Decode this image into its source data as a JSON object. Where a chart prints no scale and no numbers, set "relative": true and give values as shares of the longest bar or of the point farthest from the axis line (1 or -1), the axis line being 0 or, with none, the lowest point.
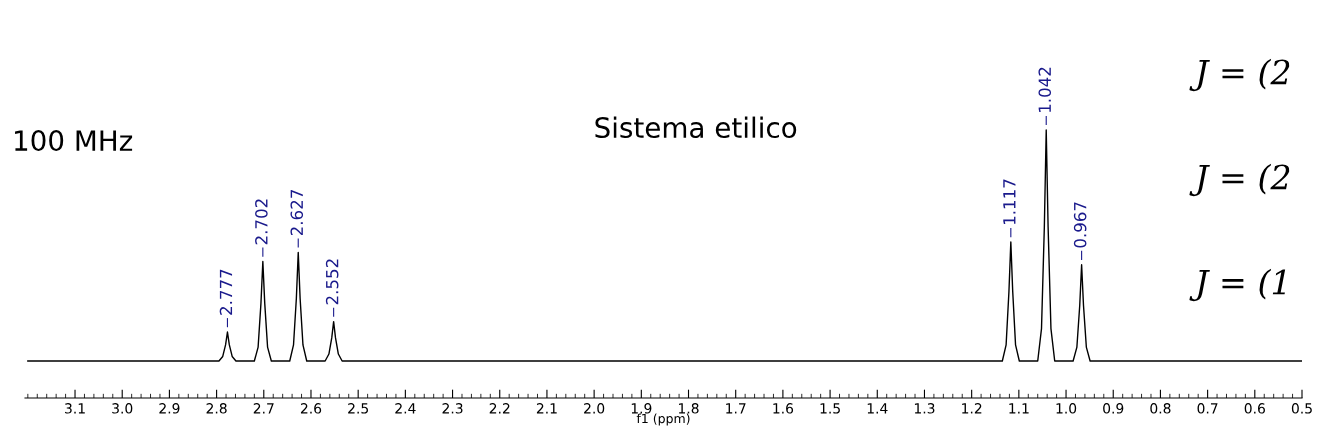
{
  "chart_data": {
    "type": "line",
    "title": "Sistema etilico",
    "xlabel": "f1 (ppm)",
    "relative": true,
    "xlim": [
      3.206,
      0.5
    ],
    "xticks": [
      3.1,
      {
        "value": 3,
        "label": "3.0"
      },
      2.9,
      2.8,
      2.7,
      2.6,
      2.5,
      2.4,
      2.3,
      2.2,
      2.1,
      {
        "value": 2,
        "label": "2.0"
      },
      1.9,
      1.8,
      1.7,
      1.6,
      1.5,
      1.4,
      1.3,
      1.2,
      1.1,
      {
        "value": 1,
        "label": "1.0"
      },
      0.9,
      0.8,
      0.7,
      0.6,
      0.5
    ],
    "tick_labels": "x",
    "grid": false,
    "legend": false,
    "marker": "none",
    "line_style": "solid",
    "series": [
      {
        "color": "#000000",
        "x": [
          3.2,
          2.795,
          2.787,
          2.781,
          2.777,
          2.773,
          2.767,
          2.759,
          2.72,
          2.712,
          2.706,
          2.702,
          2.698,
          2.692,
          2.684,
          2.645,
          2.637,
          2.631,
          2.627,
          2.623,
          2.617,
          2.609,
          2.57,
          2.562,
          2.556,
          2.552,
          2.548,
          2.542,
          2.534,
          1.135,
          1.127,
          1.121,
          1.117,
          1.113,
          1.107,
          1.099,
          1.06,
          1.052,
          1.046,
          1.042,
          1.038,
          1.032,
          1.024,
          0.985,
          0.977,
          0.971,
          0.967,
          0.963,
          0.957,
          0.949,
          0.5
        ],
        "values": [
          0.138,
          0.138,
          0.155,
          0.198,
          0.246,
          0.198,
          0.155,
          0.138,
          0.138,
          0.19,
          0.354,
          0.509,
          0.354,
          0.19,
          0.138,
          0.138,
          0.198,
          0.371,
          0.543,
          0.371,
          0.198,
          0.138,
          0.138,
          0.164,
          0.224,
          0.285,
          0.224,
          0.164,
          0.138,
          0.138,
          0.198,
          0.397,
          0.582,
          0.397,
          0.198,
          0.138,
          0.138,
          0.259,
          0.638,
          1,
          0.638,
          0.259,
          0.138,
          0.138,
          0.19,
          0.345,
          0.497,
          0.345,
          0.19,
          0.138,
          0.138
        ]
      }
    ],
    "annotations": [
      {
        "text": "2.777",
        "x": 2.777,
        "y": 0.246
      },
      {
        "text": "2.702",
        "x": 2.702,
        "y": 0.509
      },
      {
        "text": "2.627",
        "x": 2.627,
        "y": 0.543
      },
      {
        "text": "2.552",
        "x": 2.552,
        "y": 0.285
      },
      {
        "text": "1.117",
        "x": 1.117,
        "y": 0.582
      },
      {
        "text": "1.042",
        "x": 1.042,
        "y": 1
      },
      {
        "text": "0.967",
        "x": 0.967,
        "y": 0.497
      },
      "100 MHz",
      "J = (2",
      "J = (2",
      "J = (1"
    ]
  }
}
